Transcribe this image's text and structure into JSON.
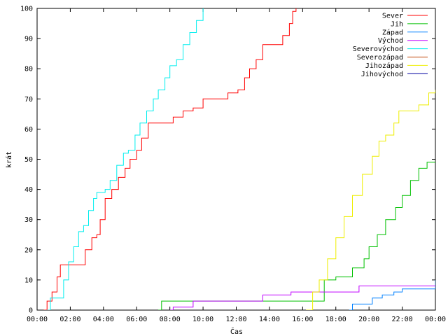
{
  "chart_data": {
    "type": "line",
    "xlabel": "Čas",
    "ylabel": "krát",
    "xlim": [
      0,
      24
    ],
    "ylim": [
      0,
      100
    ],
    "x_ticks": [
      {
        "value": 0,
        "label": "00:00"
      },
      {
        "value": 2,
        "label": "02:00"
      },
      {
        "value": 4,
        "label": "04:00"
      },
      {
        "value": 6,
        "label": "06:00"
      },
      {
        "value": 8,
        "label": "08:00"
      },
      {
        "value": 10,
        "label": "10:00"
      },
      {
        "value": 12,
        "label": "12:00"
      },
      {
        "value": 14,
        "label": "14:00"
      },
      {
        "value": 16,
        "label": "16:00"
      },
      {
        "value": 18,
        "label": "18:00"
      },
      {
        "value": 20,
        "label": "20:00"
      },
      {
        "value": 22,
        "label": "22:00"
      },
      {
        "value": 24,
        "label": "00:00"
      }
    ],
    "y_ticks": [
      0,
      10,
      20,
      30,
      40,
      50,
      60,
      70,
      80,
      90,
      100
    ],
    "grid": false,
    "legend_position": "top-right",
    "series": [
      {
        "name": "Sever",
        "color": "#ff0000",
        "points": [
          [
            0.4,
            0
          ],
          [
            0.6,
            3
          ],
          [
            0.9,
            6
          ],
          [
            1.2,
            11
          ],
          [
            1.4,
            15
          ],
          [
            2.5,
            15
          ],
          [
            2.9,
            20
          ],
          [
            3.3,
            24
          ],
          [
            3.6,
            25
          ],
          [
            3.8,
            30
          ],
          [
            4.1,
            37
          ],
          [
            4.5,
            40
          ],
          [
            4.9,
            44
          ],
          [
            5.3,
            47
          ],
          [
            5.6,
            50
          ],
          [
            6.0,
            53
          ],
          [
            6.3,
            57
          ],
          [
            6.7,
            62
          ],
          [
            7.6,
            62
          ],
          [
            8.2,
            64
          ],
          [
            8.8,
            66
          ],
          [
            9.4,
            67
          ],
          [
            9.9,
            67
          ],
          [
            10.0,
            70
          ],
          [
            11.2,
            70
          ],
          [
            11.5,
            72
          ],
          [
            12.1,
            73
          ],
          [
            12.5,
            77
          ],
          [
            12.8,
            80
          ],
          [
            13.2,
            83
          ],
          [
            13.6,
            88
          ],
          [
            14.3,
            88
          ],
          [
            14.8,
            91
          ],
          [
            15.2,
            95
          ],
          [
            15.4,
            99
          ],
          [
            15.6,
            100
          ]
        ]
      },
      {
        "name": "Jih",
        "color": "#00c000",
        "points": [
          [
            7.3,
            0
          ],
          [
            7.5,
            3
          ],
          [
            13.0,
            3
          ],
          [
            16.7,
            3
          ],
          [
            17.3,
            10
          ],
          [
            18.0,
            11
          ],
          [
            19.0,
            14
          ],
          [
            19.7,
            17
          ],
          [
            20.0,
            21
          ],
          [
            20.5,
            25
          ],
          [
            21.0,
            30
          ],
          [
            21.6,
            34
          ],
          [
            22.0,
            38
          ],
          [
            22.5,
            43
          ],
          [
            23.0,
            47
          ],
          [
            23.5,
            49
          ],
          [
            24.0,
            49
          ]
        ]
      },
      {
        "name": "Západ",
        "color": "#0080ff",
        "points": [
          [
            18.8,
            0
          ],
          [
            19.0,
            2
          ],
          [
            19.8,
            2
          ],
          [
            20.2,
            4
          ],
          [
            20.8,
            5
          ],
          [
            21.5,
            6
          ],
          [
            22.0,
            7
          ],
          [
            23.6,
            7
          ],
          [
            24.0,
            10
          ]
        ]
      },
      {
        "name": "Východ",
        "color": "#c000ff",
        "points": [
          [
            8.0,
            0
          ],
          [
            8.2,
            1
          ],
          [
            9.2,
            1
          ],
          [
            9.4,
            3
          ],
          [
            13.5,
            3
          ],
          [
            13.6,
            5
          ],
          [
            15.0,
            5
          ],
          [
            15.3,
            6
          ],
          [
            19.2,
            6
          ],
          [
            19.4,
            8
          ],
          [
            24.0,
            8
          ]
        ]
      },
      {
        "name": "Severovýchod",
        "color": "#00eeee",
        "points": [
          [
            0.6,
            0
          ],
          [
            0.8,
            4
          ],
          [
            1.4,
            4
          ],
          [
            1.6,
            10
          ],
          [
            1.9,
            16
          ],
          [
            2.2,
            21
          ],
          [
            2.5,
            26
          ],
          [
            2.8,
            28
          ],
          [
            3.1,
            33
          ],
          [
            3.4,
            37
          ],
          [
            3.6,
            39
          ],
          [
            4.1,
            40
          ],
          [
            4.4,
            43
          ],
          [
            4.8,
            48
          ],
          [
            5.2,
            52
          ],
          [
            5.5,
            53
          ],
          [
            5.9,
            58
          ],
          [
            6.2,
            62
          ],
          [
            6.6,
            66
          ],
          [
            7.0,
            70
          ],
          [
            7.3,
            73
          ],
          [
            7.7,
            77
          ],
          [
            8.0,
            81
          ],
          [
            8.4,
            83
          ],
          [
            8.8,
            88
          ],
          [
            9.2,
            92
          ],
          [
            9.6,
            96
          ],
          [
            10.0,
            100
          ]
        ]
      },
      {
        "name": "Severozápad",
        "color": "#c04000",
        "points": []
      },
      {
        "name": "Jihozápad",
        "color": "#eeee00",
        "points": [
          [
            16.2,
            0
          ],
          [
            16.6,
            6
          ],
          [
            17.0,
            10
          ],
          [
            17.5,
            17
          ],
          [
            18.0,
            24
          ],
          [
            18.5,
            31
          ],
          [
            19.0,
            38
          ],
          [
            19.6,
            45
          ],
          [
            20.2,
            51
          ],
          [
            20.6,
            56
          ],
          [
            21.0,
            58
          ],
          [
            21.5,
            62
          ],
          [
            21.8,
            66
          ],
          [
            22.6,
            66
          ],
          [
            23.0,
            68
          ],
          [
            23.6,
            72
          ],
          [
            24.0,
            73
          ]
        ]
      },
      {
        "name": "Jihovýchod",
        "color": "#0000a0",
        "points": []
      }
    ]
  }
}
